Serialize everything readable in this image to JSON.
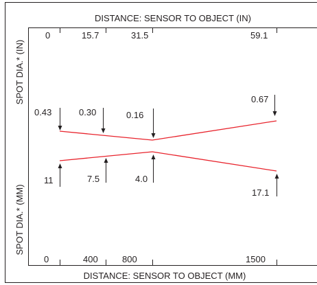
{
  "top_axis": {
    "title": "DISTANCE: SENSOR TO OBJECT (IN)",
    "ticks": [
      "0",
      "15.7",
      "31.5",
      "59.1"
    ]
  },
  "bottom_axis": {
    "title": "DISTANCE: SENSOR TO OBJECT (MM)",
    "ticks": [
      "0",
      "400",
      "800",
      "1500"
    ]
  },
  "left_labels": {
    "upper": "SPOT DIA.* (IN)",
    "lower": "SPOT DIA.* (MM)"
  },
  "spot_in": [
    "0.43",
    "0.30",
    "0.16",
    "0.67"
  ],
  "spot_mm": [
    "11",
    "7.5",
    "4.0",
    "17.1"
  ],
  "colors": {
    "beam": "#e8222b",
    "ink": "#231f20"
  }
}
